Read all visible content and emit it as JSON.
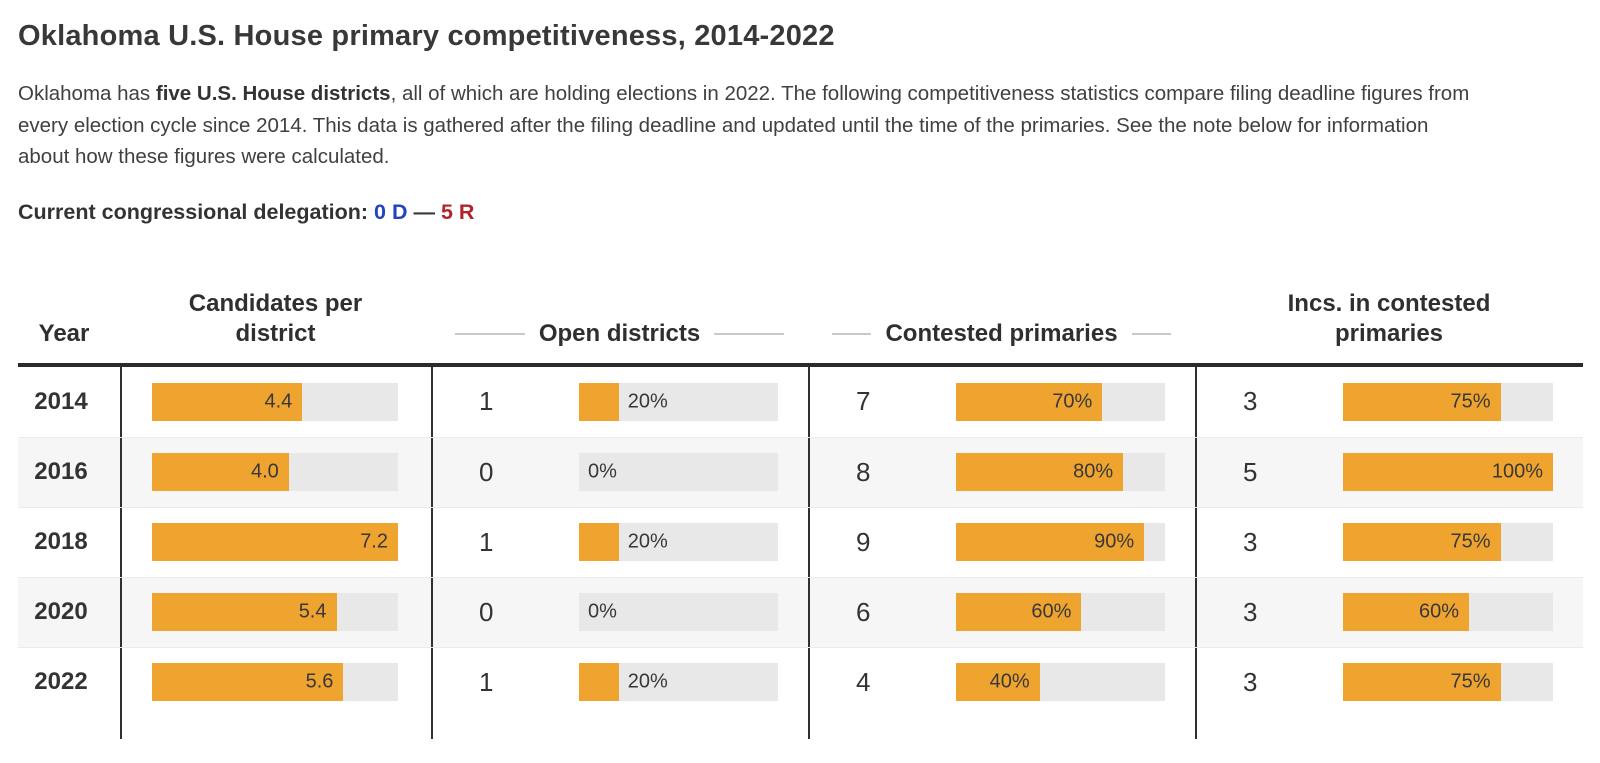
{
  "header": {
    "title": "Oklahoma U.S. House primary competitiveness, 2014-2022"
  },
  "intro": {
    "line1_pre": "Oklahoma has ",
    "line1_bold": "five U.S. House districts",
    "line1_post": ", all of which are holding elections in 2022. The following competitiveness statistics compare filing deadline figures from",
    "line2": "every election cycle since 2014. This data is gathered after the filing deadline and updated until the time of the primaries. See the note below for information",
    "line3": "about how these figures were calculated."
  },
  "delegation": {
    "label": "Current congressional delegation:",
    "democrats": "0 D",
    "separator": "—",
    "republicans": "5 R"
  },
  "colors": {
    "bar_orange": "#f0a430",
    "bar_track_gray": "#e8e8e8",
    "democrat_blue": "#2344bc",
    "republican_red": "#b2242a"
  },
  "table": {
    "columns": [
      {
        "label": "Year"
      },
      {
        "label": "Candidates per district"
      },
      {
        "label": "Open districts"
      },
      {
        "label": "Contested primaries"
      },
      {
        "label": "Incs. in contested primaries"
      }
    ],
    "candidates_bar_max": 7.2,
    "rows": [
      {
        "year": "2014",
        "candidates": {
          "display": "4.4",
          "pct": 61.1
        },
        "open": {
          "count": "1",
          "display": "20%",
          "pct": 20
        },
        "contested": {
          "count": "7",
          "display": "70%",
          "pct": 70
        },
        "incs": {
          "count": "3",
          "display": "75%",
          "pct": 75
        }
      },
      {
        "year": "2016",
        "candidates": {
          "display": "4.0",
          "pct": 55.6
        },
        "open": {
          "count": "0",
          "display": "0%",
          "pct": 0
        },
        "contested": {
          "count": "8",
          "display": "80%",
          "pct": 80
        },
        "incs": {
          "count": "5",
          "display": "100%",
          "pct": 100
        }
      },
      {
        "year": "2018",
        "candidates": {
          "display": "7.2",
          "pct": 100
        },
        "open": {
          "count": "1",
          "display": "20%",
          "pct": 20
        },
        "contested": {
          "count": "9",
          "display": "90%",
          "pct": 90
        },
        "incs": {
          "count": "3",
          "display": "75%",
          "pct": 75
        }
      },
      {
        "year": "2020",
        "candidates": {
          "display": "5.4",
          "pct": 75
        },
        "open": {
          "count": "0",
          "display": "0%",
          "pct": 0
        },
        "contested": {
          "count": "6",
          "display": "60%",
          "pct": 60
        },
        "incs": {
          "count": "3",
          "display": "60%",
          "pct": 60
        }
      },
      {
        "year": "2022",
        "candidates": {
          "display": "5.6",
          "pct": 77.8
        },
        "open": {
          "count": "1",
          "display": "20%",
          "pct": 20
        },
        "contested": {
          "count": "4",
          "display": "40%",
          "pct": 40
        },
        "incs": {
          "count": "3",
          "display": "75%",
          "pct": 75
        }
      }
    ]
  },
  "chart_data": {
    "type": "table",
    "title": "Oklahoma U.S. House primary competitiveness, 2014-2022",
    "categories": [
      "2014",
      "2016",
      "2018",
      "2020",
      "2022"
    ],
    "series": [
      {
        "name": "Candidates per district",
        "values": [
          4.4,
          4.0,
          7.2,
          5.4,
          5.6
        ]
      },
      {
        "name": "Open districts (count)",
        "values": [
          1,
          0,
          1,
          0,
          1
        ]
      },
      {
        "name": "Open districts (%)",
        "values": [
          20,
          0,
          20,
          0,
          20
        ]
      },
      {
        "name": "Contested primaries (count)",
        "values": [
          7,
          8,
          9,
          6,
          4
        ]
      },
      {
        "name": "Contested primaries (%)",
        "values": [
          70,
          80,
          90,
          60,
          40
        ]
      },
      {
        "name": "Incs. in contested primaries (count)",
        "values": [
          3,
          5,
          3,
          3,
          3
        ]
      },
      {
        "name": "Incs. in contested primaries (%)",
        "values": [
          75,
          100,
          75,
          60,
          75
        ]
      }
    ],
    "layout": {
      "bar_scale_candidates": [
        0,
        7.2
      ],
      "bar_scale_percent": [
        0,
        100
      ],
      "legend": "none",
      "grid": "off"
    }
  }
}
